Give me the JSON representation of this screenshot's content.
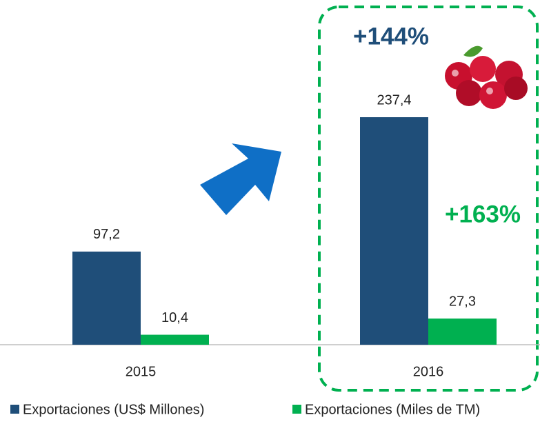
{
  "chart_data": {
    "type": "bar",
    "categories": [
      "2015",
      "2016"
    ],
    "series": [
      {
        "name": "Exportaciones (US$ Millones)",
        "color": "#1f4e79",
        "values": [
          97.2,
          237.4
        ],
        "value_labels": [
          "97,2",
          "237,4"
        ]
      },
      {
        "name": "Exportaciones (Miles de TM)",
        "color": "#00b050",
        "values": [
          10.4,
          27.3
        ],
        "value_labels": [
          "10,4",
          "27,3"
        ]
      }
    ],
    "annotations": [
      "+144%",
      "+163%"
    ]
  }
}
